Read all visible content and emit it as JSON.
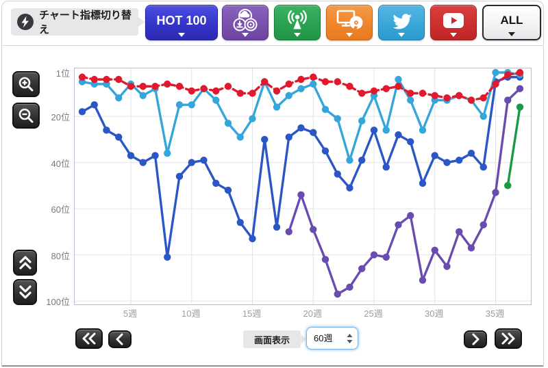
{
  "header": {
    "switch_label": "チャート指標切り替え",
    "hot100_label": "HOT 100",
    "all_label": "ALL",
    "metric_buttons": [
      {
        "id": "hot100",
        "label": "HOT 100",
        "color": "#3636C9"
      },
      {
        "id": "sales",
        "icon": "sales-composite-icon",
        "color": "#7B50AE"
      },
      {
        "id": "airplay",
        "icon": "radio-broadcast-icon",
        "color": "#2AA251"
      },
      {
        "id": "lookup",
        "icon": "pc-disc-icon",
        "color": "#EF862C"
      },
      {
        "id": "twitter",
        "icon": "twitter-bird-icon",
        "color": "#3AA7DA"
      },
      {
        "id": "youtube",
        "icon": "youtube-play-icon",
        "color": "#CC2F30"
      },
      {
        "id": "all",
        "label": "ALL",
        "color": "#FFFFFF"
      }
    ],
    "switch_icon": "bolt-circle-icon"
  },
  "side_controls": {
    "icons": [
      "magnifier-plus-icon",
      "magnifier-minus-icon",
      "double-chevron-up-icon",
      "double-chevron-down-icon"
    ]
  },
  "footer": {
    "display_label": "画面表示",
    "range_value": "60週",
    "icons": [
      "double-chevron-left-icon",
      "chevron-left-icon",
      "chevron-right-icon",
      "double-chevron-right-icon"
    ]
  },
  "chart_data": {
    "type": "line",
    "x_unit": "週",
    "y_unit": "位",
    "xlim": [
      1,
      37
    ],
    "ylim": [
      1,
      100
    ],
    "y_axis_inverted": true,
    "grid": true,
    "legend": "none",
    "x_ticks": [
      {
        "week": 5,
        "label": "5週"
      },
      {
        "week": 10,
        "label": "10週"
      },
      {
        "week": 15,
        "label": "15週"
      },
      {
        "week": 20,
        "label": "20週"
      },
      {
        "week": 25,
        "label": "25週"
      },
      {
        "week": 30,
        "label": "30週"
      },
      {
        "week": 35,
        "label": "35週"
      }
    ],
    "y_ticks": [
      {
        "pos": 1,
        "label": "1位"
      },
      {
        "pos": 20,
        "label": "20位"
      },
      {
        "pos": 40,
        "label": "40位"
      },
      {
        "pos": 60,
        "label": "60位"
      },
      {
        "pos": 80,
        "label": "80位"
      },
      {
        "pos": 100,
        "label": "100位"
      }
    ],
    "series": [
      {
        "name": "purple",
        "color": "#6A4CB1",
        "dashed": false,
        "start_week": 18,
        "values": [
          70,
          54,
          69,
          82,
          97,
          94,
          86,
          80,
          81,
          67,
          63,
          91,
          78,
          85,
          70,
          77,
          67,
          53,
          13,
          8
        ]
      },
      {
        "name": "green",
        "color": "#199A44",
        "dashed": false,
        "start_week": 36,
        "values": [
          50,
          16
        ]
      },
      {
        "name": "blue",
        "color": "#2A56C6",
        "dashed": false,
        "start_week": 1,
        "values": [
          18,
          15,
          26,
          29,
          37,
          40,
          37,
          81,
          46,
          40,
          39,
          49,
          52,
          66,
          73,
          30,
          68,
          29,
          25,
          27,
          35,
          45,
          51,
          39,
          26,
          42,
          28,
          31,
          49,
          37,
          40,
          39,
          36,
          42,
          5,
          3,
          3
        ]
      },
      {
        "name": "light-blue",
        "color": "#35A6DC",
        "dashed": false,
        "start_week": 1,
        "values": [
          5,
          6,
          6,
          12,
          6,
          11,
          8,
          36,
          15,
          15,
          8,
          13,
          23,
          29,
          21,
          5,
          16,
          11,
          8,
          6,
          17,
          21,
          39,
          22,
          11,
          26,
          4,
          13,
          26,
          13,
          13,
          11,
          13,
          20,
          1,
          1,
          2
        ]
      },
      {
        "name": "red",
        "color": "#E01A2E",
        "dashed": true,
        "start_week": 1,
        "values": [
          3,
          4,
          4,
          4,
          7,
          7,
          7,
          6,
          7,
          9,
          8,
          9,
          7,
          10,
          10,
          5,
          9,
          6,
          4,
          3,
          5,
          5,
          7,
          10,
          9,
          8,
          7,
          10,
          10,
          11,
          12,
          11,
          13,
          12,
          6,
          2,
          1
        ]
      }
    ]
  }
}
